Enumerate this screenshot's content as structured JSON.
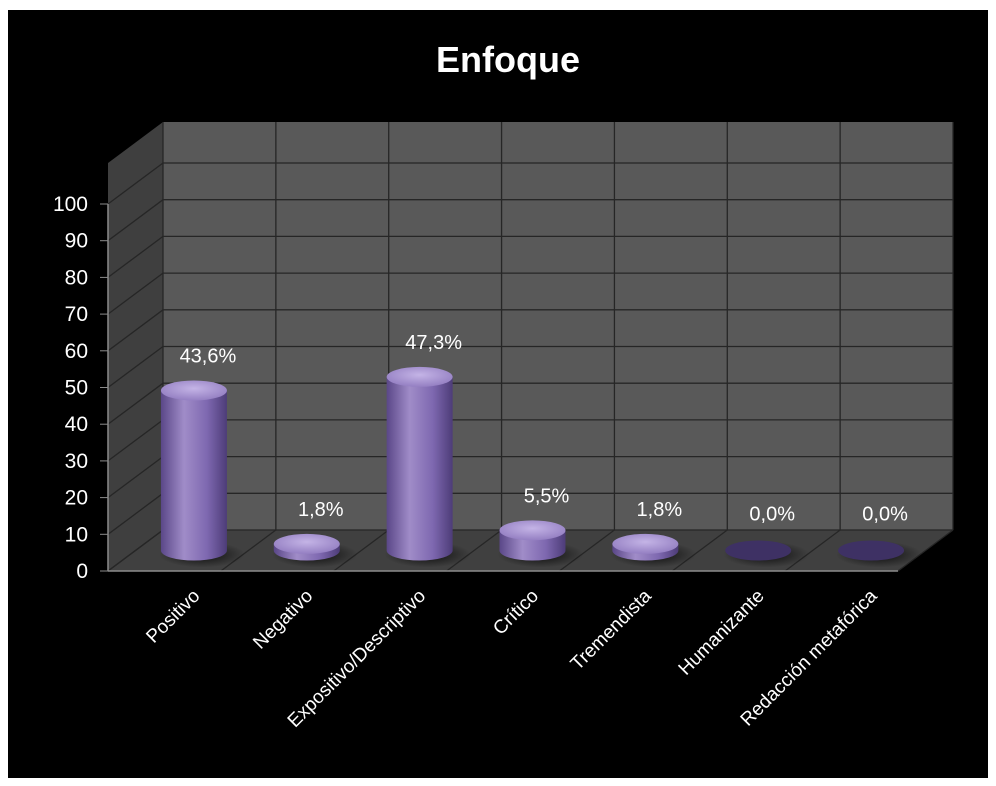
{
  "chart_data": {
    "type": "bar",
    "title": "Enfoque",
    "categories": [
      "Positivo",
      "Negativo",
      "Expositivo/Descriptivo",
      "Crítico",
      "Tremendista",
      "Humanizante",
      "Redacción metafórica"
    ],
    "values": [
      43.6,
      1.8,
      47.3,
      5.5,
      1.8,
      0.0,
      0.0
    ],
    "data_labels": [
      "43,6%",
      "1,8%",
      "47,3%",
      "5,5%",
      "1,8%",
      "0,0%",
      "0,0%"
    ],
    "yticks": [
      "0",
      "10",
      "20",
      "30",
      "40",
      "50",
      "60",
      "70",
      "80",
      "90",
      "100"
    ],
    "ylim": [
      0,
      100
    ],
    "xlabel": "",
    "ylabel": "",
    "grid": true,
    "legend": "none",
    "style": "3d-cylinder",
    "colors": {
      "background": "#000000",
      "wall": "#595959",
      "floor": "#404040",
      "grid": "#262626",
      "bar_light": "#a08cc8",
      "bar_mid": "#7e68b0",
      "bar_dark": "#5a4788",
      "bar_top": "#b8a6dc",
      "text": "#ffffff"
    }
  }
}
